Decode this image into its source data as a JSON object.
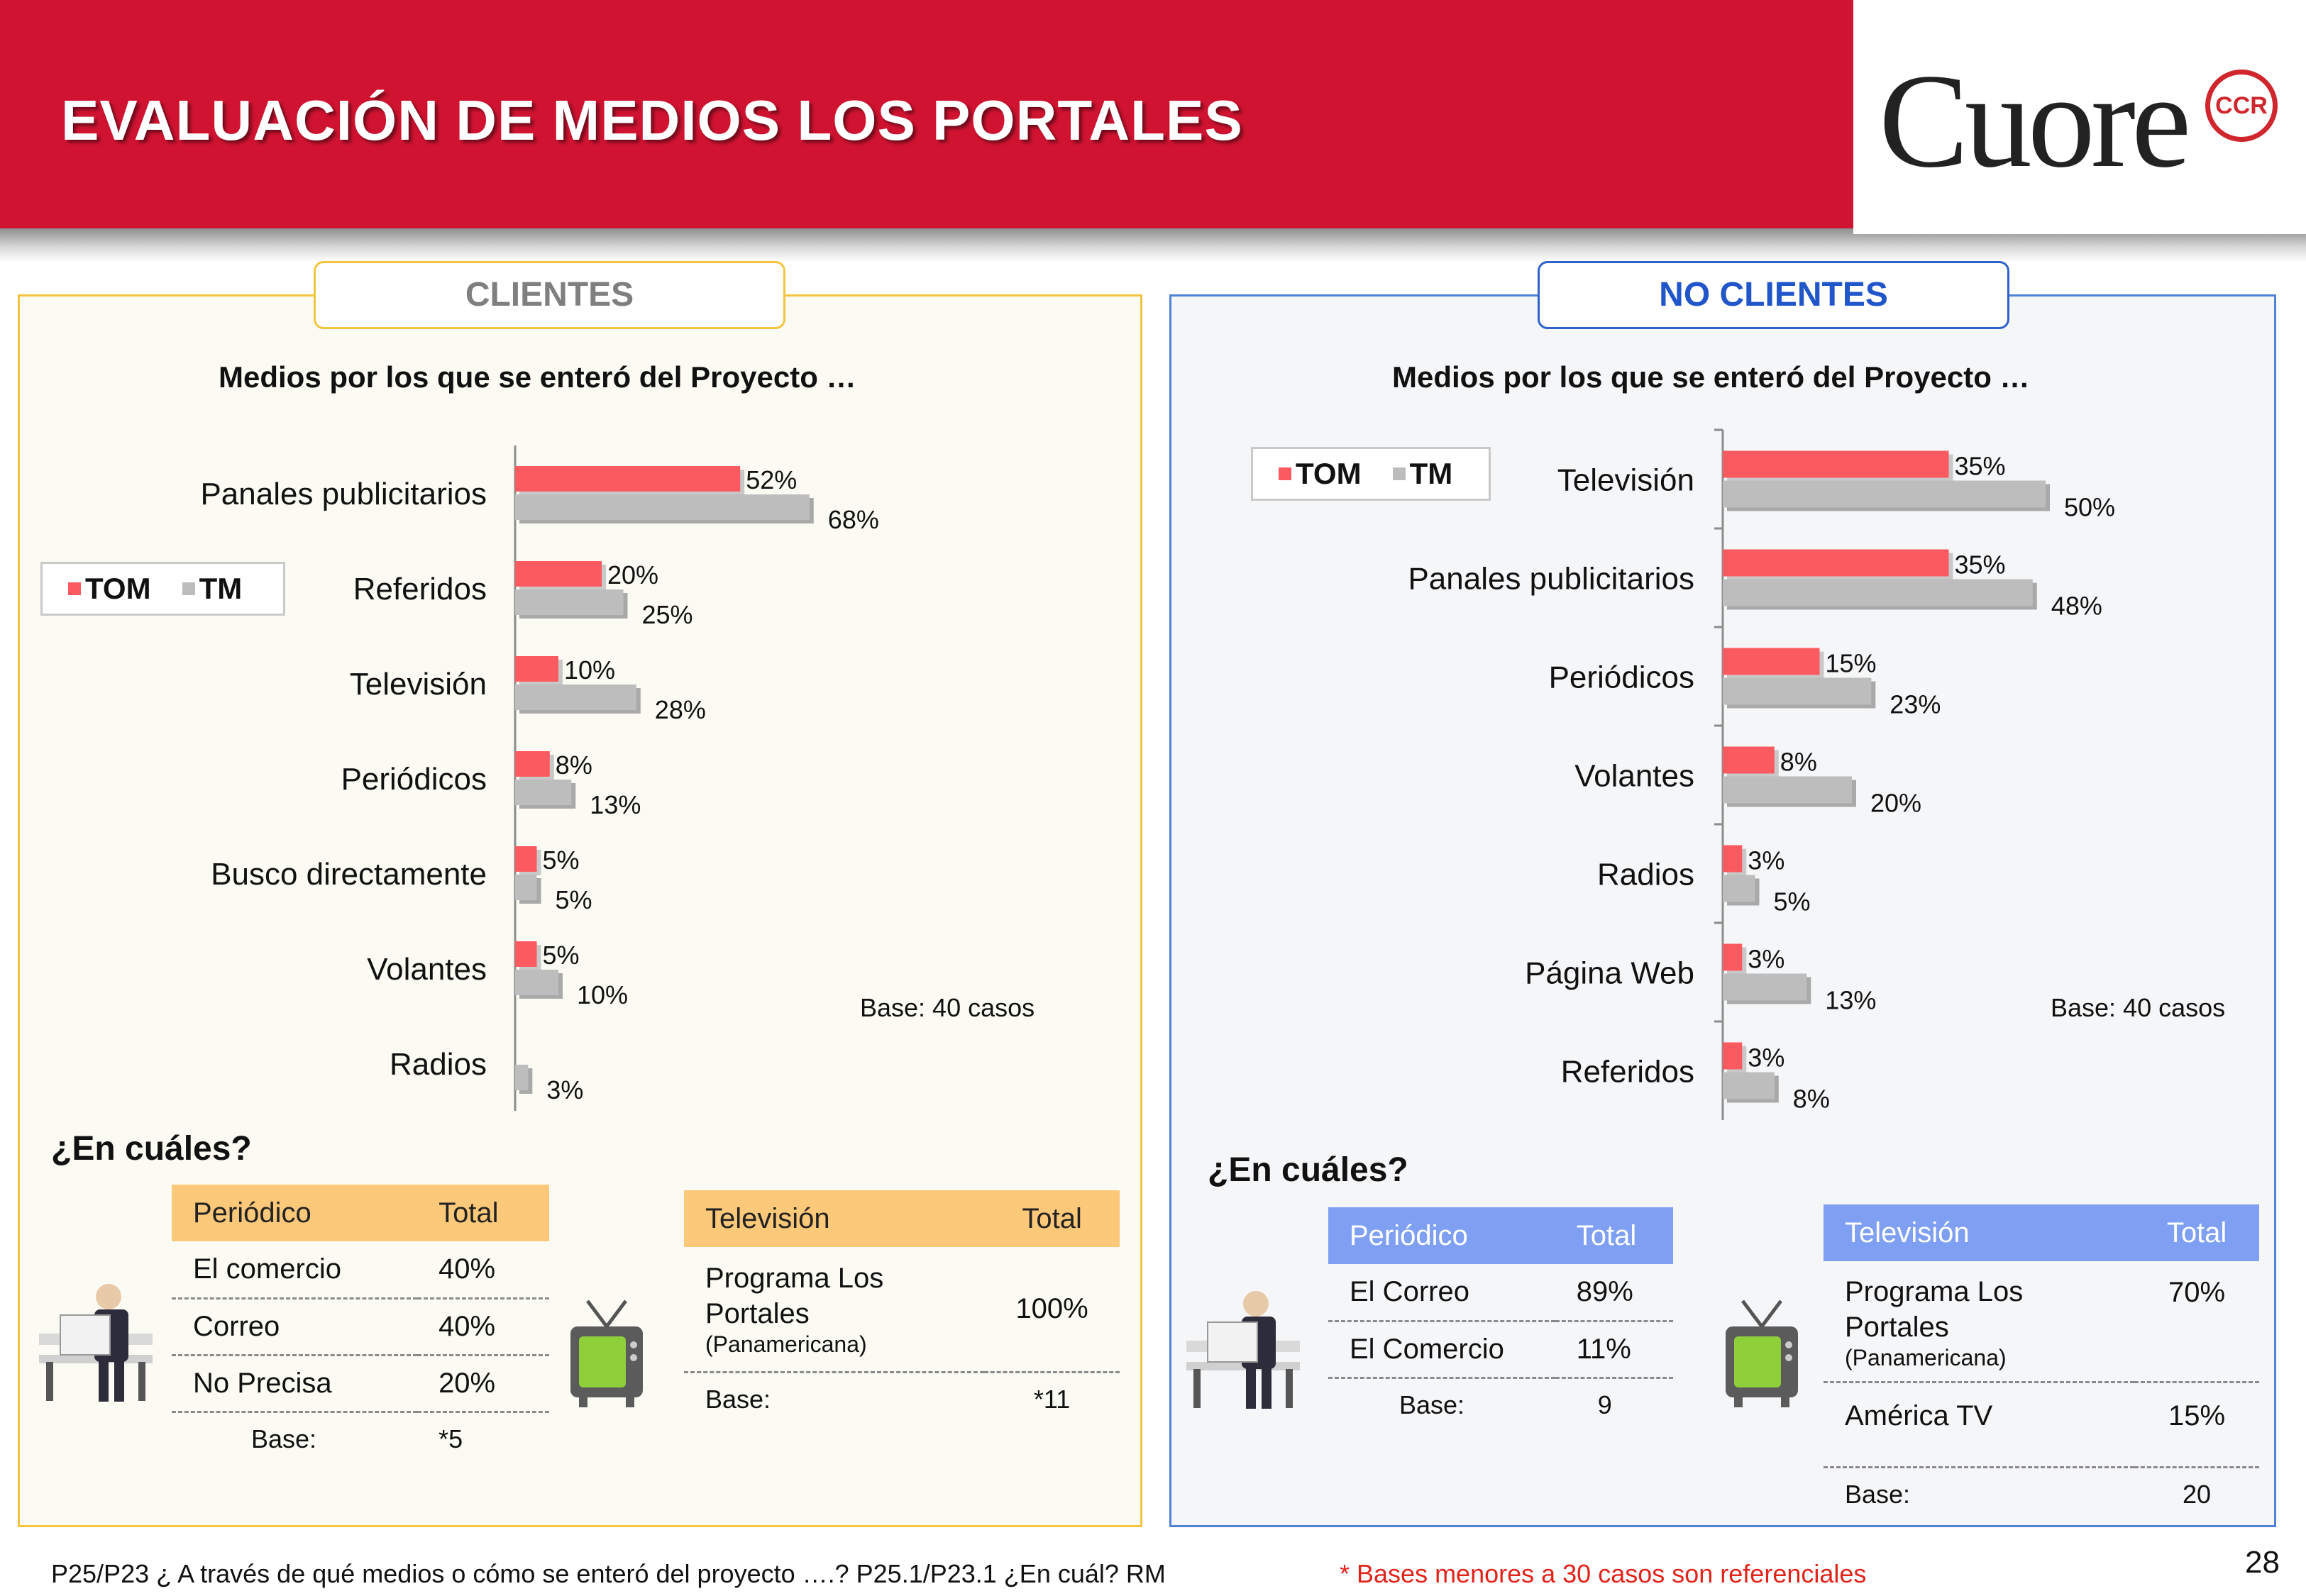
{
  "header": {
    "title": "EVALUACIÓN DE MEDIOS LOS PORTALES",
    "logo_text": "Cuore",
    "logo_seal": "CCR"
  },
  "clientes": {
    "tab_label": "CLIENTES",
    "chart_title": "Medios por los que se enteró del Proyecto …",
    "legend": {
      "tom": "TOM",
      "tm": "TM"
    },
    "base_note": "Base: 40 casos",
    "en_cuales": "¿En cuáles?",
    "periodico_table": {
      "headers": [
        "Periódico",
        "Total"
      ],
      "rows": [
        {
          "name": "El comercio",
          "value": "40%"
        },
        {
          "name": "Correo",
          "value": "40%"
        },
        {
          "name": "No Precisa",
          "value": "20%"
        }
      ],
      "base_label": "Base:",
      "base_value": "*5"
    },
    "tv_table": {
      "headers": [
        "Televisión",
        "Total"
      ],
      "rows": [
        {
          "name": "Programa Los Portales",
          "sub": "(Panamericana)",
          "value": "100%"
        }
      ],
      "base_label": "Base:",
      "base_value": "*11"
    }
  },
  "no_clientes": {
    "tab_label": "NO CLIENTES",
    "chart_title": "Medios por los que se enteró del Proyecto …",
    "legend": {
      "tom": "TOM",
      "tm": "TM"
    },
    "base_note": "Base: 40 casos",
    "en_cuales": "¿En cuáles?",
    "periodico_table": {
      "headers": [
        "Periódico",
        "Total"
      ],
      "rows": [
        {
          "name": "El Correo",
          "value": "89%"
        },
        {
          "name": "El Comercio",
          "value": "11%"
        }
      ],
      "base_label": "Base:",
      "base_value": "9"
    },
    "tv_table": {
      "headers": [
        "Televisión",
        "Total"
      ],
      "rows": [
        {
          "name": "Programa Los Portales",
          "sub": "(Panamericana)",
          "value": "70%"
        },
        {
          "name": "América TV",
          "value": "15%"
        }
      ],
      "base_label": "Base:",
      "base_value": "20"
    }
  },
  "chart_data": [
    {
      "type": "bar",
      "orientation": "horizontal",
      "title": "Medios por los que se enteró del Proyecto …",
      "categories": [
        "Panales publicitarios",
        "Referidos",
        "Televisión",
        "Periódicos",
        "Busco directamente",
        "Volantes",
        "Radios"
      ],
      "series": [
        {
          "name": "TOM",
          "values": [
            52,
            20,
            10,
            8,
            5,
            5,
            0
          ],
          "labels": [
            "52%",
            "20%",
            "10%",
            "8%",
            "5%",
            "5%",
            ""
          ],
          "color": "#fc5a61"
        },
        {
          "name": "TM",
          "values": [
            68,
            25,
            28,
            13,
            5,
            10,
            3
          ],
          "labels": [
            "68%",
            "25%",
            "28%",
            "13%",
            "5%",
            "10%",
            "3%"
          ],
          "color": "#bdbdbd"
        }
      ],
      "unit": "%",
      "legend_position": "left"
    },
    {
      "type": "bar",
      "orientation": "horizontal",
      "title": "Medios por los que se enteró del Proyecto …",
      "categories": [
        "Televisión",
        "Panales publicitarios",
        "Periódicos",
        "Volantes",
        "Radios",
        "Página Web",
        "Referidos"
      ],
      "series": [
        {
          "name": "TOM",
          "values": [
            35,
            35,
            15,
            8,
            3,
            3,
            3
          ],
          "labels": [
            "35%",
            "35%",
            "15%",
            "8%",
            "3%",
            "3%",
            "3%"
          ],
          "color": "#fc5a61"
        },
        {
          "name": "TM",
          "values": [
            50,
            48,
            23,
            20,
            5,
            13,
            8
          ],
          "labels": [
            "50%",
            "48%",
            "23%",
            "20%",
            "5%",
            "13%",
            "8%"
          ],
          "color": "#bdbdbd"
        }
      ],
      "unit": "%",
      "legend_position": "top-left"
    }
  ],
  "footer": {
    "question": "P25/P23 ¿ A través de qué medios o cómo se enteró del proyecto ….?  P25.1/P23.1 ¿En cuál? RM",
    "note": "* Bases menores a 30 casos son referenciales",
    "page_number": "28"
  }
}
